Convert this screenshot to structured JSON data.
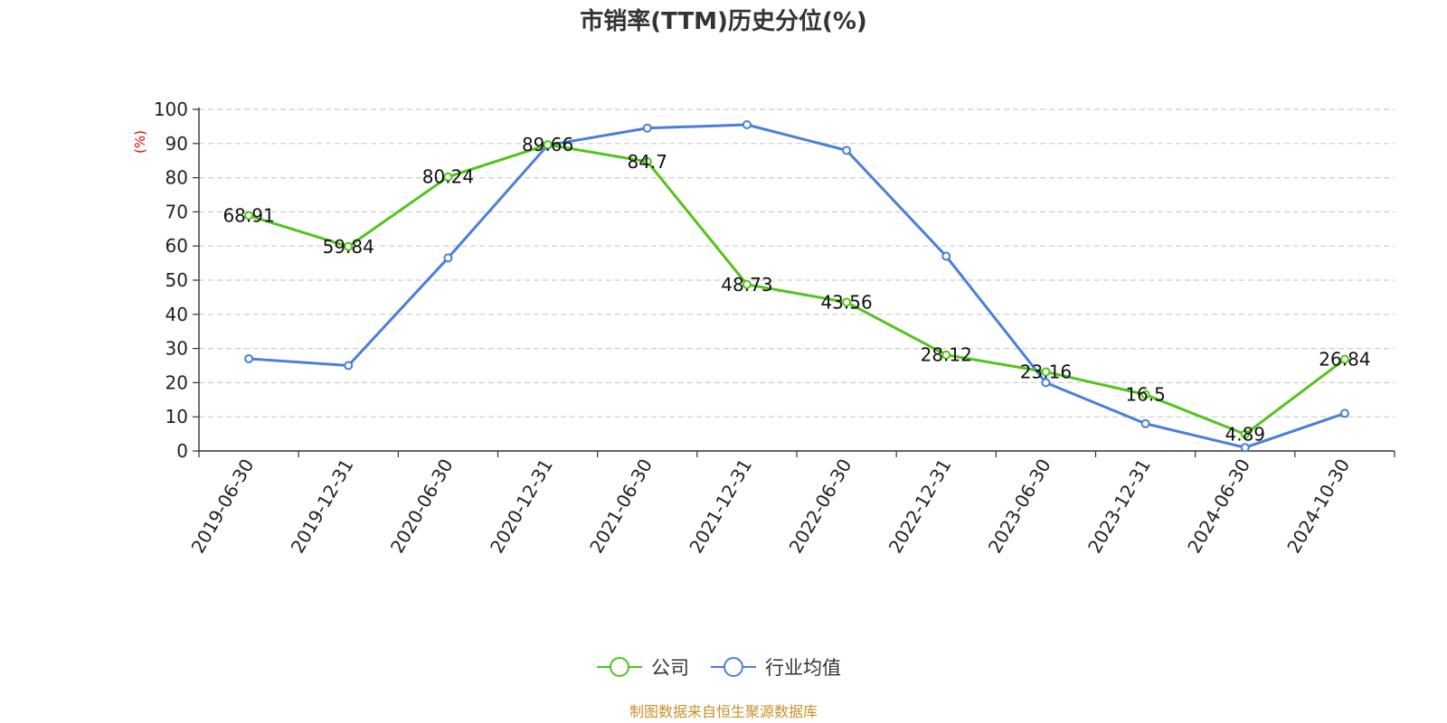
{
  "chart_data": {
    "type": "line",
    "title": "市销率(TTM)历史分位(%)",
    "ylabel": "(%)",
    "ylim": [
      0,
      100
    ],
    "yticks": [
      0,
      10,
      20,
      30,
      40,
      50,
      60,
      70,
      80,
      90,
      100
    ],
    "grid": true,
    "legend_position": "bottom-center",
    "categories": [
      "2019-06-30",
      "2019-12-31",
      "2020-06-30",
      "2020-12-31",
      "2021-06-30",
      "2021-12-31",
      "2022-06-30",
      "2022-12-31",
      "2023-06-30",
      "2023-12-31",
      "2024-06-30",
      "2024-10-30"
    ],
    "series": [
      {
        "name": "公司",
        "color": "#52c41a",
        "show_labels": true,
        "values": [
          68.91,
          59.84,
          80.24,
          89.66,
          84.7,
          48.73,
          43.56,
          28.12,
          23.16,
          16.5,
          4.89,
          26.84
        ]
      },
      {
        "name": "行业均值",
        "color": "#4a7fd8",
        "show_labels": false,
        "values": [
          27,
          25,
          56.5,
          89.5,
          94.5,
          95.5,
          88,
          57,
          20,
          8,
          1,
          11
        ]
      }
    ],
    "source": "制图数据来自恒生聚源数据库"
  }
}
